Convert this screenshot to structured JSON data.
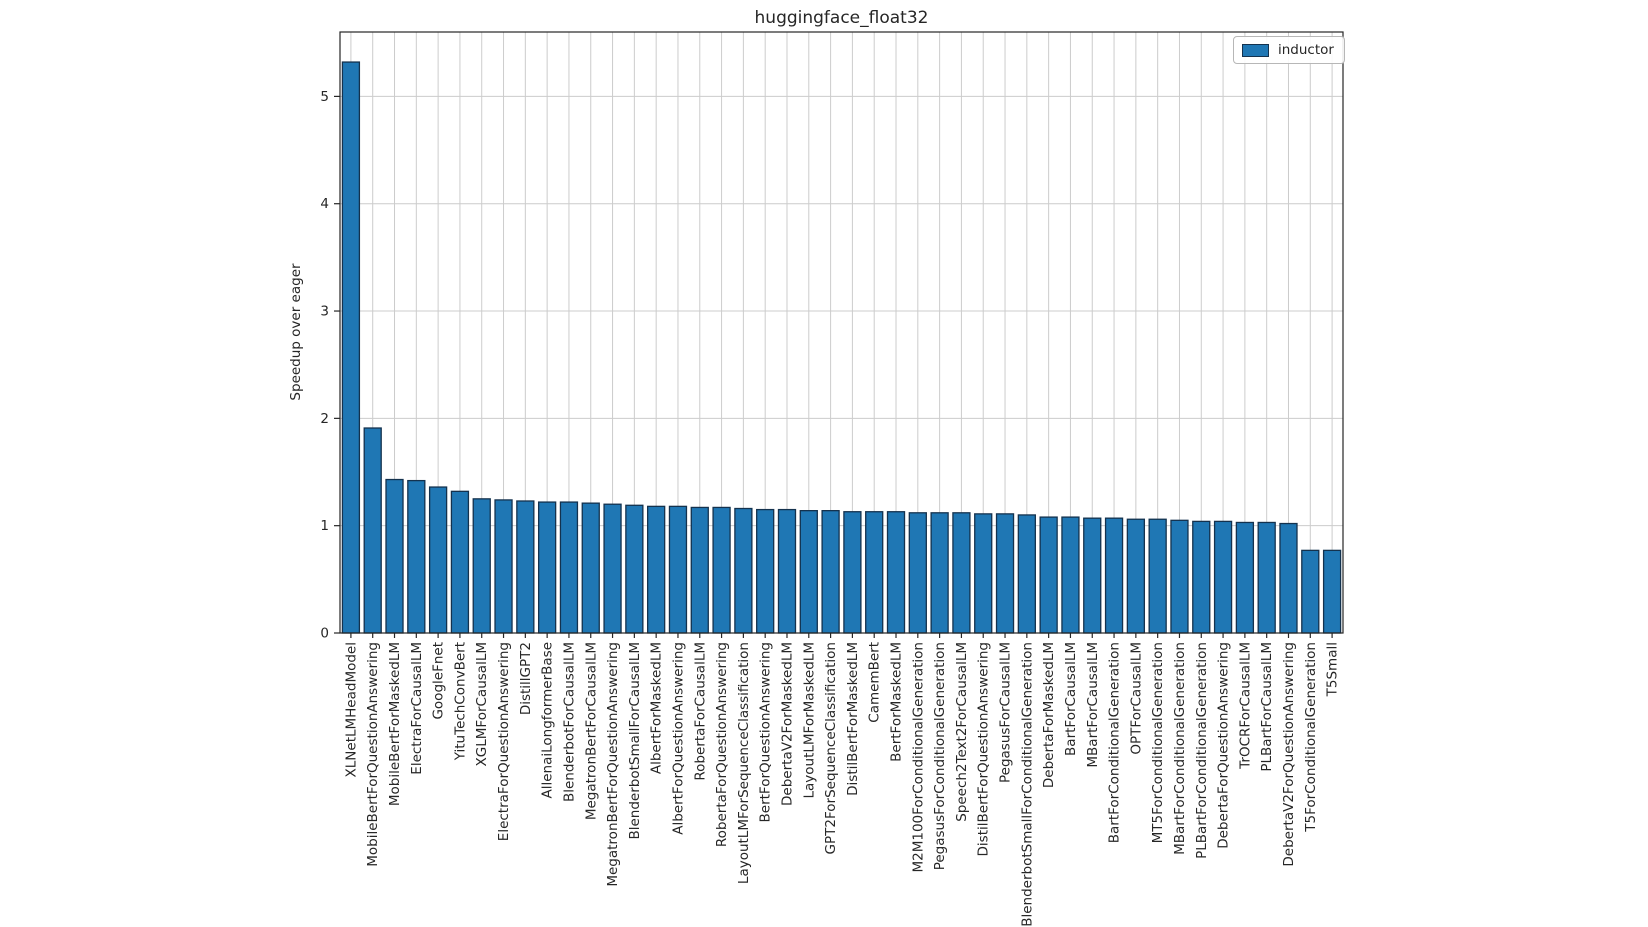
{
  "chart_data": {
    "type": "bar",
    "title": "huggingface_float32",
    "xlabel": "",
    "ylabel": "Speedup over eager",
    "legend_entries": [
      "inductor"
    ],
    "legend_position": "upper right",
    "grid": true,
    "ylim": [
      0,
      5.6
    ],
    "yticks": [
      0,
      1,
      2,
      3,
      4,
      5
    ],
    "categories": [
      "XLNetLMHeadModel",
      "MobileBertForQuestionAnswering",
      "MobileBertForMaskedLM",
      "ElectraForCausalLM",
      "GoogleFnet",
      "YituTechConvBert",
      "XGLMForCausalLM",
      "ElectraForQuestionAnswering",
      "DistillGPT2",
      "AllenaiLongformerBase",
      "BlenderbotForCausalLM",
      "MegatronBertForCausalLM",
      "MegatronBertForQuestionAnswering",
      "BlenderbotSmallForCausalLM",
      "AlbertForMaskedLM",
      "AlbertForQuestionAnswering",
      "RobertaForCausalLM",
      "RobertaForQuestionAnswering",
      "LayoutLMForSequenceClassification",
      "BertForQuestionAnswering",
      "DebertaV2ForMaskedLM",
      "LayoutLMForMaskedLM",
      "GPT2ForSequenceClassification",
      "DistilBertForMaskedLM",
      "CamemBert",
      "BertForMaskedLM",
      "M2M100ForConditionalGeneration",
      "PegasusForConditionalGeneration",
      "Speech2Text2ForCausalLM",
      "DistilBertForQuestionAnswering",
      "PegasusForCausalLM",
      "BlenderbotSmallForConditionalGeneration",
      "DebertaForMaskedLM",
      "BartForCausalLM",
      "MBartForCausalLM",
      "BartForConditionalGeneration",
      "OPTForCausalLM",
      "MT5ForConditionalGeneration",
      "MBartForConditionalGeneration",
      "PLBartForConditionalGeneration",
      "DebertaForQuestionAnswering",
      "TrOCRForCausalLM",
      "PLBartForCausalLM",
      "DebertaV2ForQuestionAnswering",
      "T5ForConditionalGeneration",
      "T5Small"
    ],
    "series": [
      {
        "name": "inductor",
        "values": [
          5.32,
          1.91,
          1.43,
          1.42,
          1.36,
          1.32,
          1.25,
          1.24,
          1.23,
          1.22,
          1.22,
          1.21,
          1.2,
          1.19,
          1.18,
          1.18,
          1.17,
          1.17,
          1.16,
          1.15,
          1.15,
          1.14,
          1.14,
          1.13,
          1.13,
          1.13,
          1.12,
          1.12,
          1.12,
          1.11,
          1.11,
          1.1,
          1.08,
          1.08,
          1.07,
          1.07,
          1.06,
          1.06,
          1.05,
          1.04,
          1.04,
          1.03,
          1.03,
          1.02,
          0.77,
          0.77
        ]
      }
    ]
  },
  "legend": {
    "label": "inductor"
  },
  "colors": {
    "bar_fill": "#1f77b4",
    "bar_edge": "#14324e",
    "grid": "#cccccc",
    "spine": "#262626",
    "text": "#262626",
    "legend_border": "#b7b7b7"
  }
}
